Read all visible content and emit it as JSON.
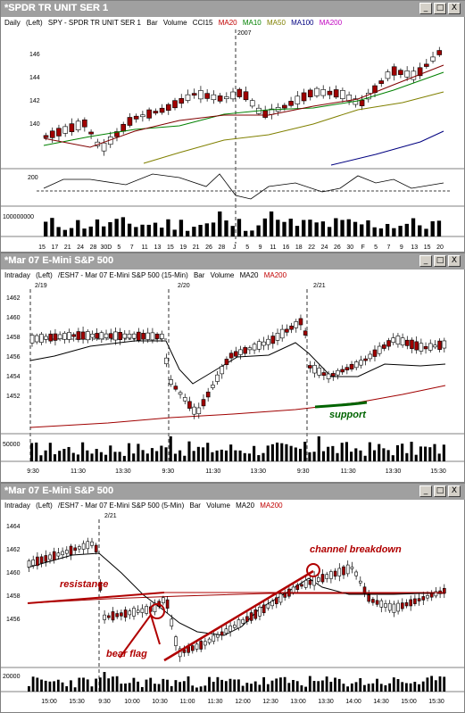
{
  "windows": [
    {
      "title": "*SPDR TR UNIT SER 1",
      "legend": {
        "period": "Daily",
        "side": "(Left)",
        "desc": "SPY - SPDR TR UNIT SER 1",
        "bar": "Bar",
        "volume": "Volume",
        "cci": "CCI15",
        "ma20": "MA20",
        "ma10": "MA10",
        "ma50": "MA50",
        "ma100": "MA100",
        "ma200": "MA200"
      },
      "year_label": "2007",
      "y_ticks": [
        "146",
        "144",
        "142",
        "140"
      ],
      "cci_tick": "200",
      "volume_tick": "100000000",
      "x_ticks": [
        "15",
        "17",
        "21",
        "24",
        "28",
        "30D",
        "5",
        "7",
        "11",
        "13",
        "15",
        "19",
        "21",
        "26",
        "28",
        "J",
        "5",
        "9",
        "11",
        "16",
        "18",
        "22",
        "24",
        "26",
        "30",
        "F",
        "5",
        "7",
        "9",
        "13",
        "15",
        "20"
      ]
    },
    {
      "title": "*Mar 07  E-Mini S&P 500",
      "legend": {
        "period": "Intraday",
        "side": "(Left)",
        "desc": "/ESH7 - Mar 07  E-Mini S&P 500 (15-Min)",
        "bar": "Bar",
        "volume": "Volume",
        "ma20": "MA20",
        "ma200": "MA200"
      },
      "date_labels": [
        "2/19",
        "2/20",
        "2/21"
      ],
      "y_ticks": [
        "1462",
        "1460",
        "1458",
        "1456",
        "1454",
        "1452"
      ],
      "volume_tick": "50000",
      "x_ticks": [
        "9:30",
        "11:30",
        "13:30",
        "9:30",
        "11:30",
        "13:30",
        "9:30",
        "11:30",
        "13:30",
        "15:30"
      ],
      "annotation_support": "support"
    },
    {
      "title": "*Mar 07  E-Mini S&P 500",
      "legend": {
        "period": "Intraday",
        "side": "(Left)",
        "desc": "/ESH7 - Mar 07  E-Mini S&P 500 (5-Min)",
        "bar": "Bar",
        "volume": "Volume",
        "ma20": "MA20",
        "ma200": "MA200"
      },
      "date_label": "2/21",
      "y_ticks": [
        "1464",
        "1462",
        "1460",
        "1458",
        "1456"
      ],
      "volume_tick": "20000",
      "x_ticks": [
        "15:00",
        "15:30",
        "9:30",
        "10:00",
        "10:30",
        "11:00",
        "11:30",
        "12:00",
        "12:30",
        "13:00",
        "13:30",
        "14:00",
        "14:30",
        "15:00",
        "15:30"
      ],
      "annotation_resistance": "resistance",
      "annotation_channel": "channel breakdown",
      "annotation_bearflag": "bear flag"
    }
  ],
  "window_buttons": {
    "minimize": "_",
    "maximize": "□",
    "close": "X"
  },
  "colors": {
    "ma20": "#008000",
    "ma10": "#800000",
    "ma50": "#808000",
    "ma100": "#000080",
    "ma200": "#c00000",
    "cci": "#000080",
    "annot": "#c00000",
    "support": "#006400",
    "up_candle": "#ffffff",
    "down_candle": "#a00000"
  }
}
